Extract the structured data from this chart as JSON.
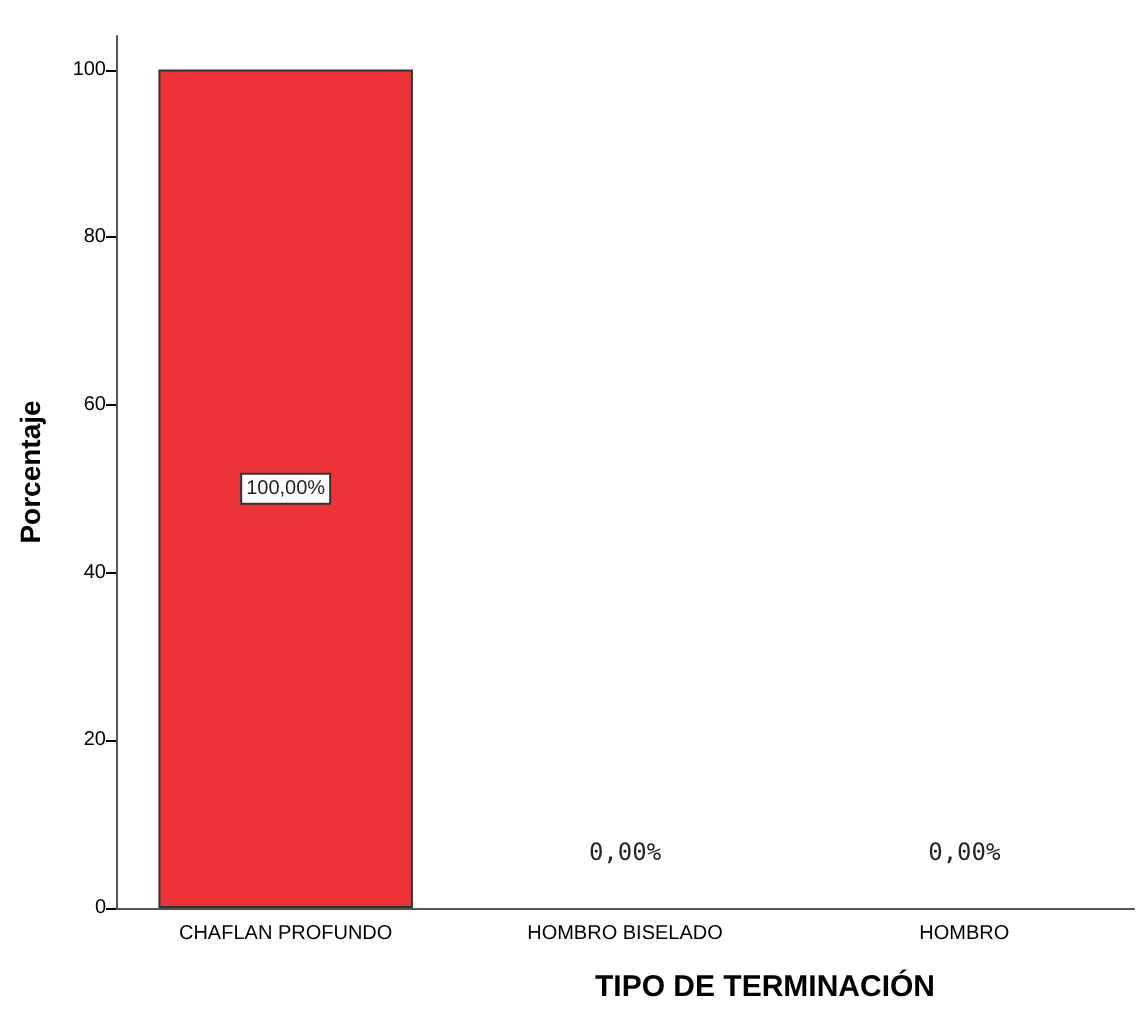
{
  "chart_data": {
    "type": "bar",
    "xlabel": "TIPO DE TERMINACIÓN",
    "ylabel": "Porcentaje",
    "categories": [
      "CHAFLAN PROFUNDO",
      "HOMBRO BISELADO",
      "HOMBRO"
    ],
    "values": [
      100,
      0,
      0
    ],
    "color": "#ee3338",
    "value_labels": [
      "100,00%",
      "0,00%",
      "0,00%"
    ],
    "ylim": [
      0,
      104
    ],
    "yticks": [
      0,
      20,
      40,
      60,
      80,
      100
    ],
    "grid": false
  }
}
